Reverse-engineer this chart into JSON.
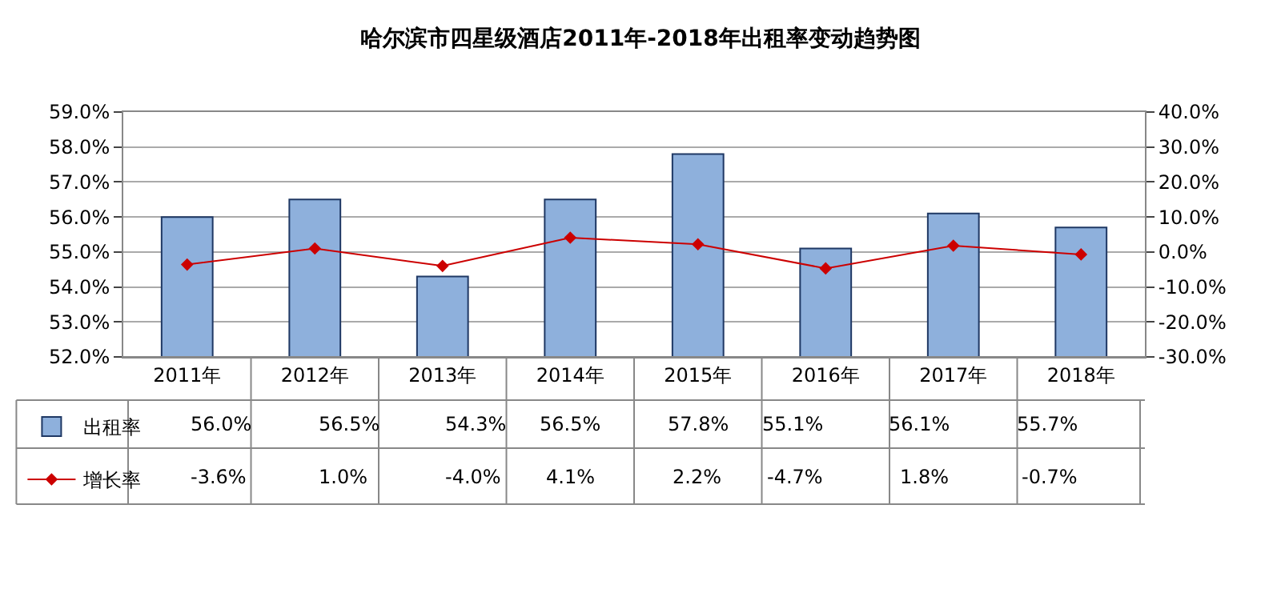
{
  "chart_data": {
    "type": "bar",
    "title": "哈尔滨市四星级酒店2011年-2018年出租率变动趋势图",
    "categories": [
      "2011年",
      "2012年",
      "2013年",
      "2014年",
      "2015年",
      "2016年",
      "2017年",
      "2018年"
    ],
    "series": [
      {
        "name": "出租率",
        "color": "#8eb0dc",
        "values": [
          56.0,
          56.5,
          54.3,
          56.5,
          57.8,
          55.1,
          56.1,
          55.7
        ],
        "value_labels": [
          "56.0%",
          "56.5%",
          "54.3%",
          "56.5%",
          "57.8%",
          "55.1%",
          "56.1%",
          "55.7%"
        ]
      },
      {
        "name": "增长率",
        "type": "line",
        "axis": "y2",
        "color": "#cc0000",
        "marker": "diamond",
        "line_style": "solid",
        "values": [
          -3.6,
          1.0,
          -4.0,
          4.1,
          2.2,
          -4.7,
          1.8,
          -0.7
        ],
        "value_labels": [
          "-3.6%",
          "1.0%",
          "-4.0%",
          "4.1%",
          "2.2%",
          "-4.7%",
          "1.8%",
          "-0.7%"
        ]
      }
    ],
    "ylim": [
      52,
      59
    ],
    "yticks": [
      {
        "value": 52,
        "label": "52.0%"
      },
      {
        "value": 53,
        "label": "53.0%"
      },
      {
        "value": 54,
        "label": "54.0%"
      },
      {
        "value": 55,
        "label": "55.0%"
      },
      {
        "value": 56,
        "label": "56.0%"
      },
      {
        "value": 57,
        "label": "57.0%"
      },
      {
        "value": 58,
        "label": "58.0%"
      },
      {
        "value": 59,
        "label": "59.0%"
      }
    ],
    "y2lim": [
      -30,
      40
    ],
    "y2ticks": [
      {
        "value": -30,
        "label": "-30.0%"
      },
      {
        "value": -20,
        "label": "-20.0%"
      },
      {
        "value": -10,
        "label": "-10.0%"
      },
      {
        "value": 0,
        "label": "0.0%"
      },
      {
        "value": 10,
        "label": "10.0%"
      },
      {
        "value": 20,
        "label": "20.0%"
      },
      {
        "value": 30,
        "label": "30.0%"
      },
      {
        "value": 40,
        "label": "40.0%"
      }
    ],
    "grid": "y",
    "legend": "bottom"
  }
}
